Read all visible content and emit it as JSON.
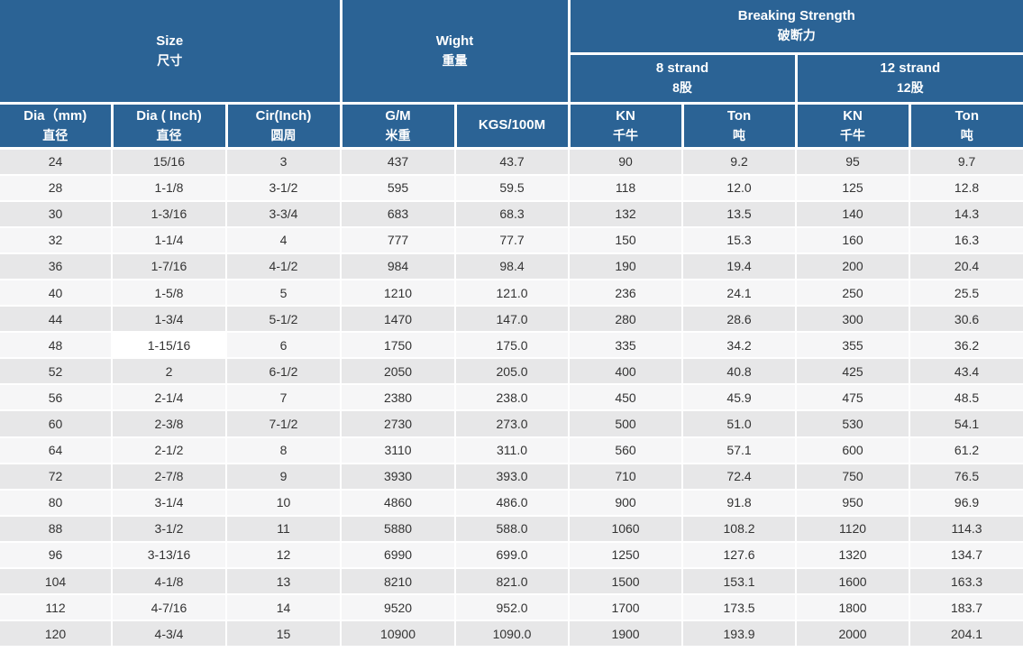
{
  "colors": {
    "header_blue": "#2B6395",
    "row_dark": "#E7E7E8",
    "row_light": "#F6F6F7",
    "text": "#333333",
    "border": "#FFFFFF",
    "highlight_cell_bg": "#FFFFFF"
  },
  "table": {
    "header": {
      "size_group": {
        "en": "Size",
        "zh": "尺寸"
      },
      "weight_group": {
        "en": "Wight",
        "zh": "重量"
      },
      "breaking_group": {
        "en": "Breaking Strength",
        "zh": "破断力"
      },
      "strand8": {
        "en": "8 strand",
        "zh": "8股"
      },
      "strand12": {
        "en": "12 strand",
        "zh": "12股"
      },
      "columns": [
        {
          "en": "Dia（mm)",
          "zh": "直径"
        },
        {
          "en": "Dia ( Inch)",
          "zh": "直径"
        },
        {
          "en": "Cir(Inch)",
          "zh": "圆周"
        },
        {
          "en": "G/M",
          "zh": "米重"
        },
        {
          "en": "KGS/100M",
          "zh": ""
        },
        {
          "en": "KN",
          "zh": "千牛"
        },
        {
          "en": "Ton",
          "zh": "吨"
        },
        {
          "en": "KN",
          "zh": "千牛"
        },
        {
          "en": "Ton",
          "zh": "吨"
        }
      ]
    },
    "rows": [
      [
        "24",
        "15/16",
        "3",
        "437",
        "43.7",
        "90",
        "9.2",
        "95",
        "9.7"
      ],
      [
        "28",
        "1-1/8",
        "3-1/2",
        "595",
        "59.5",
        "118",
        "12.0",
        "125",
        "12.8"
      ],
      [
        "30",
        "1-3/16",
        "3-3/4",
        "683",
        "68.3",
        "132",
        "13.5",
        "140",
        "14.3"
      ],
      [
        "32",
        "1-1/4",
        "4",
        "777",
        "77.7",
        "150",
        "15.3",
        "160",
        "16.3"
      ],
      [
        "36",
        "1-7/16",
        "4-1/2",
        "984",
        "98.4",
        "190",
        "19.4",
        "200",
        "20.4"
      ],
      [
        "40",
        "1-5/8",
        "5",
        "1210",
        "121.0",
        "236",
        "24.1",
        "250",
        "25.5"
      ],
      [
        "44",
        "1-3/4",
        "5-1/2",
        "1470",
        "147.0",
        "280",
        "28.6",
        "300",
        "30.6"
      ],
      [
        "48",
        "1-15/16",
        "6",
        "1750",
        "175.0",
        "335",
        "34.2",
        "355",
        "36.2"
      ],
      [
        "52",
        "2",
        "6-1/2",
        "2050",
        "205.0",
        "400",
        "40.8",
        "425",
        "43.4"
      ],
      [
        "56",
        "2-1/4",
        "7",
        "2380",
        "238.0",
        "450",
        "45.9",
        "475",
        "48.5"
      ],
      [
        "60",
        "2-3/8",
        "7-1/2",
        "2730",
        "273.0",
        "500",
        "51.0",
        "530",
        "54.1"
      ],
      [
        "64",
        "2-1/2",
        "8",
        "3110",
        "311.0",
        "560",
        "57.1",
        "600",
        "61.2"
      ],
      [
        "72",
        "2-7/8",
        "9",
        "3930",
        "393.0",
        "710",
        "72.4",
        "750",
        "76.5"
      ],
      [
        "80",
        "3-1/4",
        "10",
        "4860",
        "486.0",
        "900",
        "91.8",
        "950",
        "96.9"
      ],
      [
        "88",
        "3-1/2",
        "11",
        "5880",
        "588.0",
        "1060",
        "108.2",
        "1120",
        "114.3"
      ],
      [
        "96",
        "3-13/16",
        "12",
        "6990",
        "699.0",
        "1250",
        "127.6",
        "1320",
        "134.7"
      ],
      [
        "104",
        "4-1/8",
        "13",
        "8210",
        "821.0",
        "1500",
        "153.1",
        "1600",
        "163.3"
      ],
      [
        "112",
        "4-7/16",
        "14",
        "9520",
        "952.0",
        "1700",
        "173.5",
        "1800",
        "183.7"
      ],
      [
        "120",
        "4-3/4",
        "15",
        "10900",
        "1090.0",
        "1900",
        "193.9",
        "2000",
        "204.1"
      ]
    ],
    "highlight_cell": {
      "row": 7,
      "col": 1
    }
  }
}
